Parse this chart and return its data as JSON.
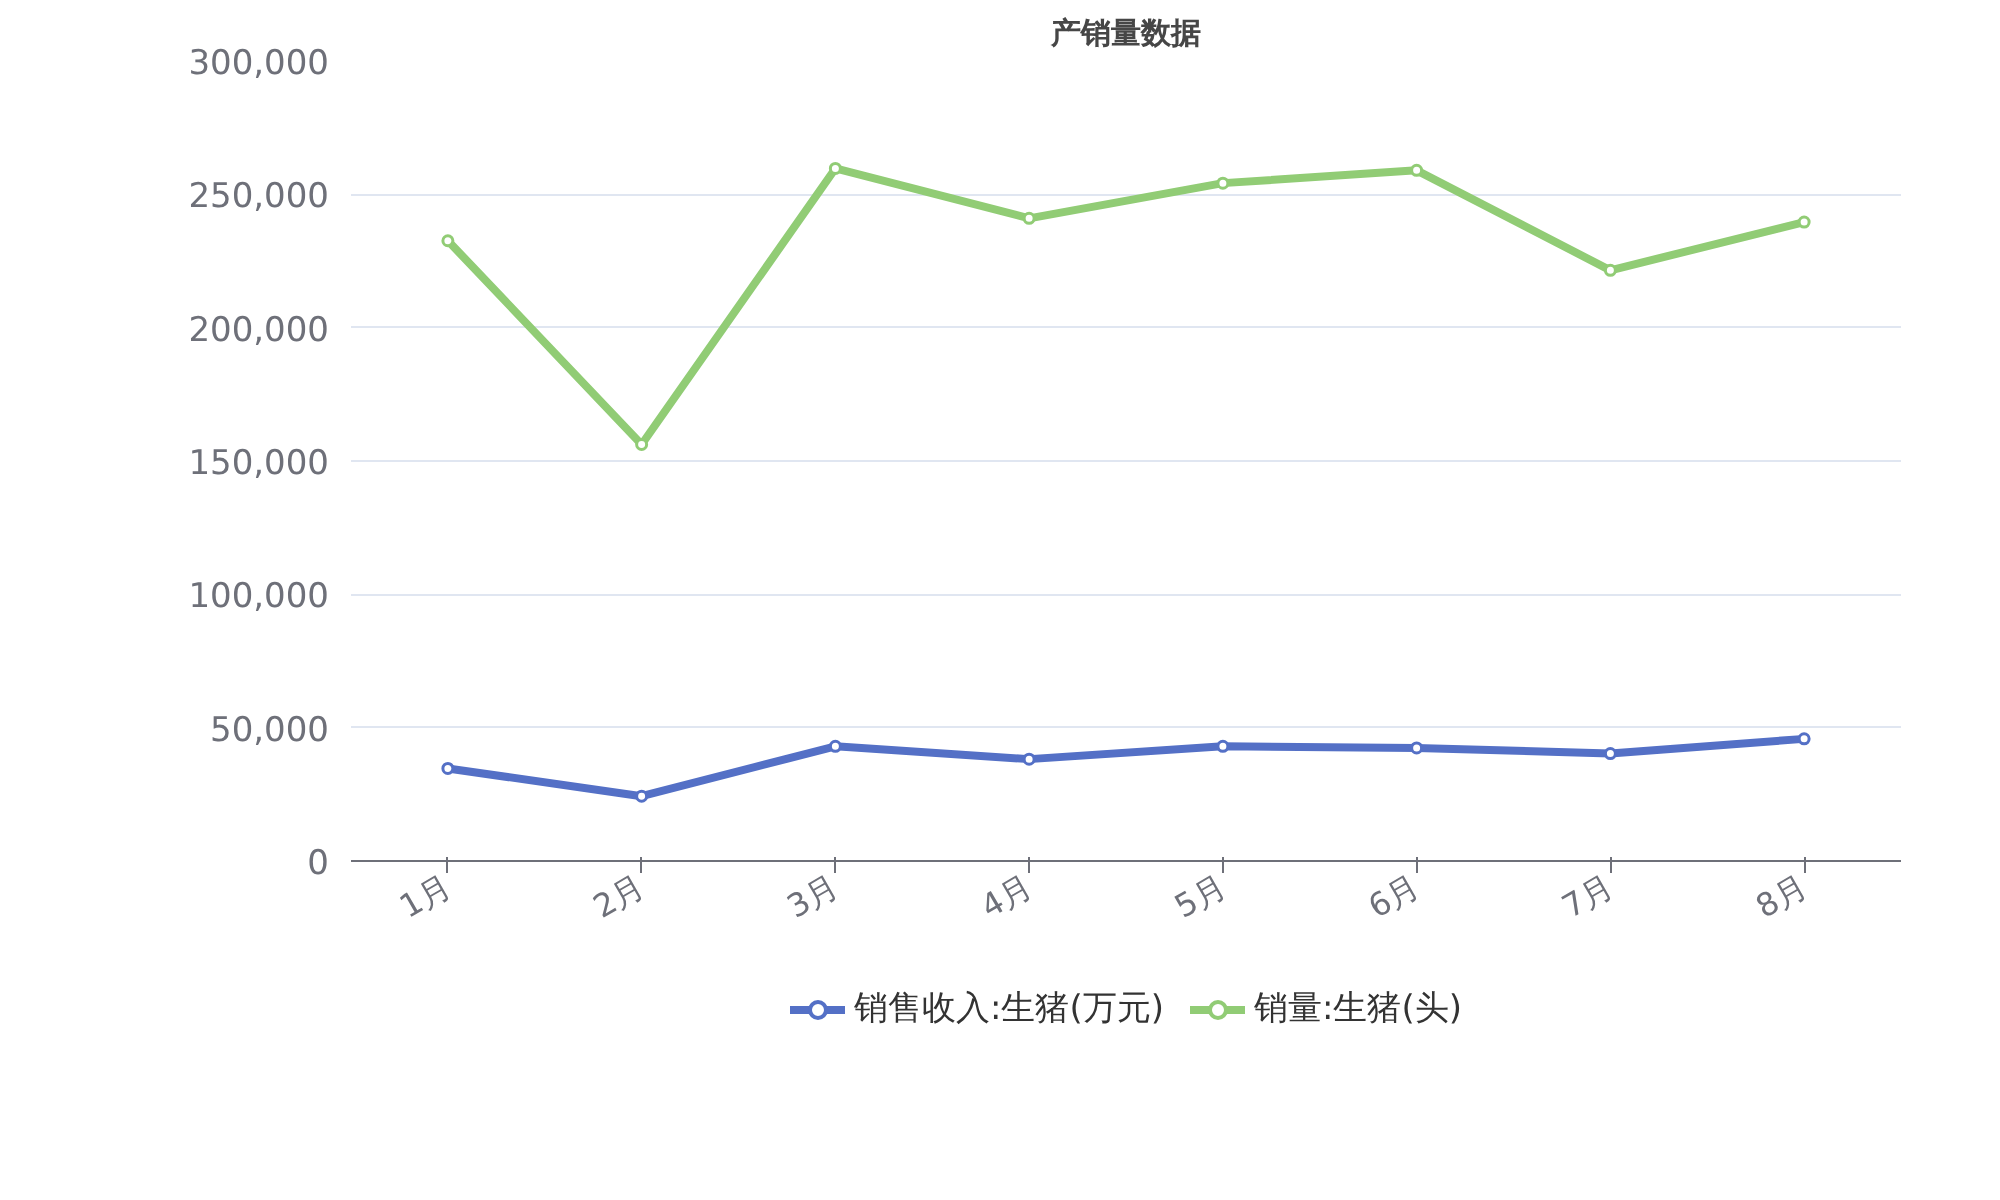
{
  "chart_data": {
    "type": "line",
    "title": "产销量数据",
    "categories": [
      "1月",
      "2月",
      "3月",
      "4月",
      "5月",
      "6月",
      "7月",
      "8月"
    ],
    "series": [
      {
        "name": "销售收入:生猪(万元)",
        "color": "#5470c6",
        "values": [
          34700,
          24300,
          43000,
          38200,
          43000,
          42400,
          40300,
          45800
        ]
      },
      {
        "name": "销量:生猪(头)",
        "color": "#91cc75",
        "values": [
          232600,
          156200,
          259700,
          241000,
          254200,
          259000,
          221500,
          239600
        ]
      }
    ],
    "ylim": [
      0,
      300000
    ],
    "yticks": [
      {
        "value": 0,
        "label": "0"
      },
      {
        "value": 50000,
        "label": "50,000"
      },
      {
        "value": 100000,
        "label": "100,000"
      },
      {
        "value": 150000,
        "label": "150,000"
      },
      {
        "value": 200000,
        "label": "200,000"
      },
      {
        "value": 250000,
        "label": "250,000"
      },
      {
        "value": 300000,
        "label": "300,000"
      }
    ],
    "grid": "y",
    "legend": "bottom",
    "marker": "circle",
    "line_style": "solid"
  }
}
